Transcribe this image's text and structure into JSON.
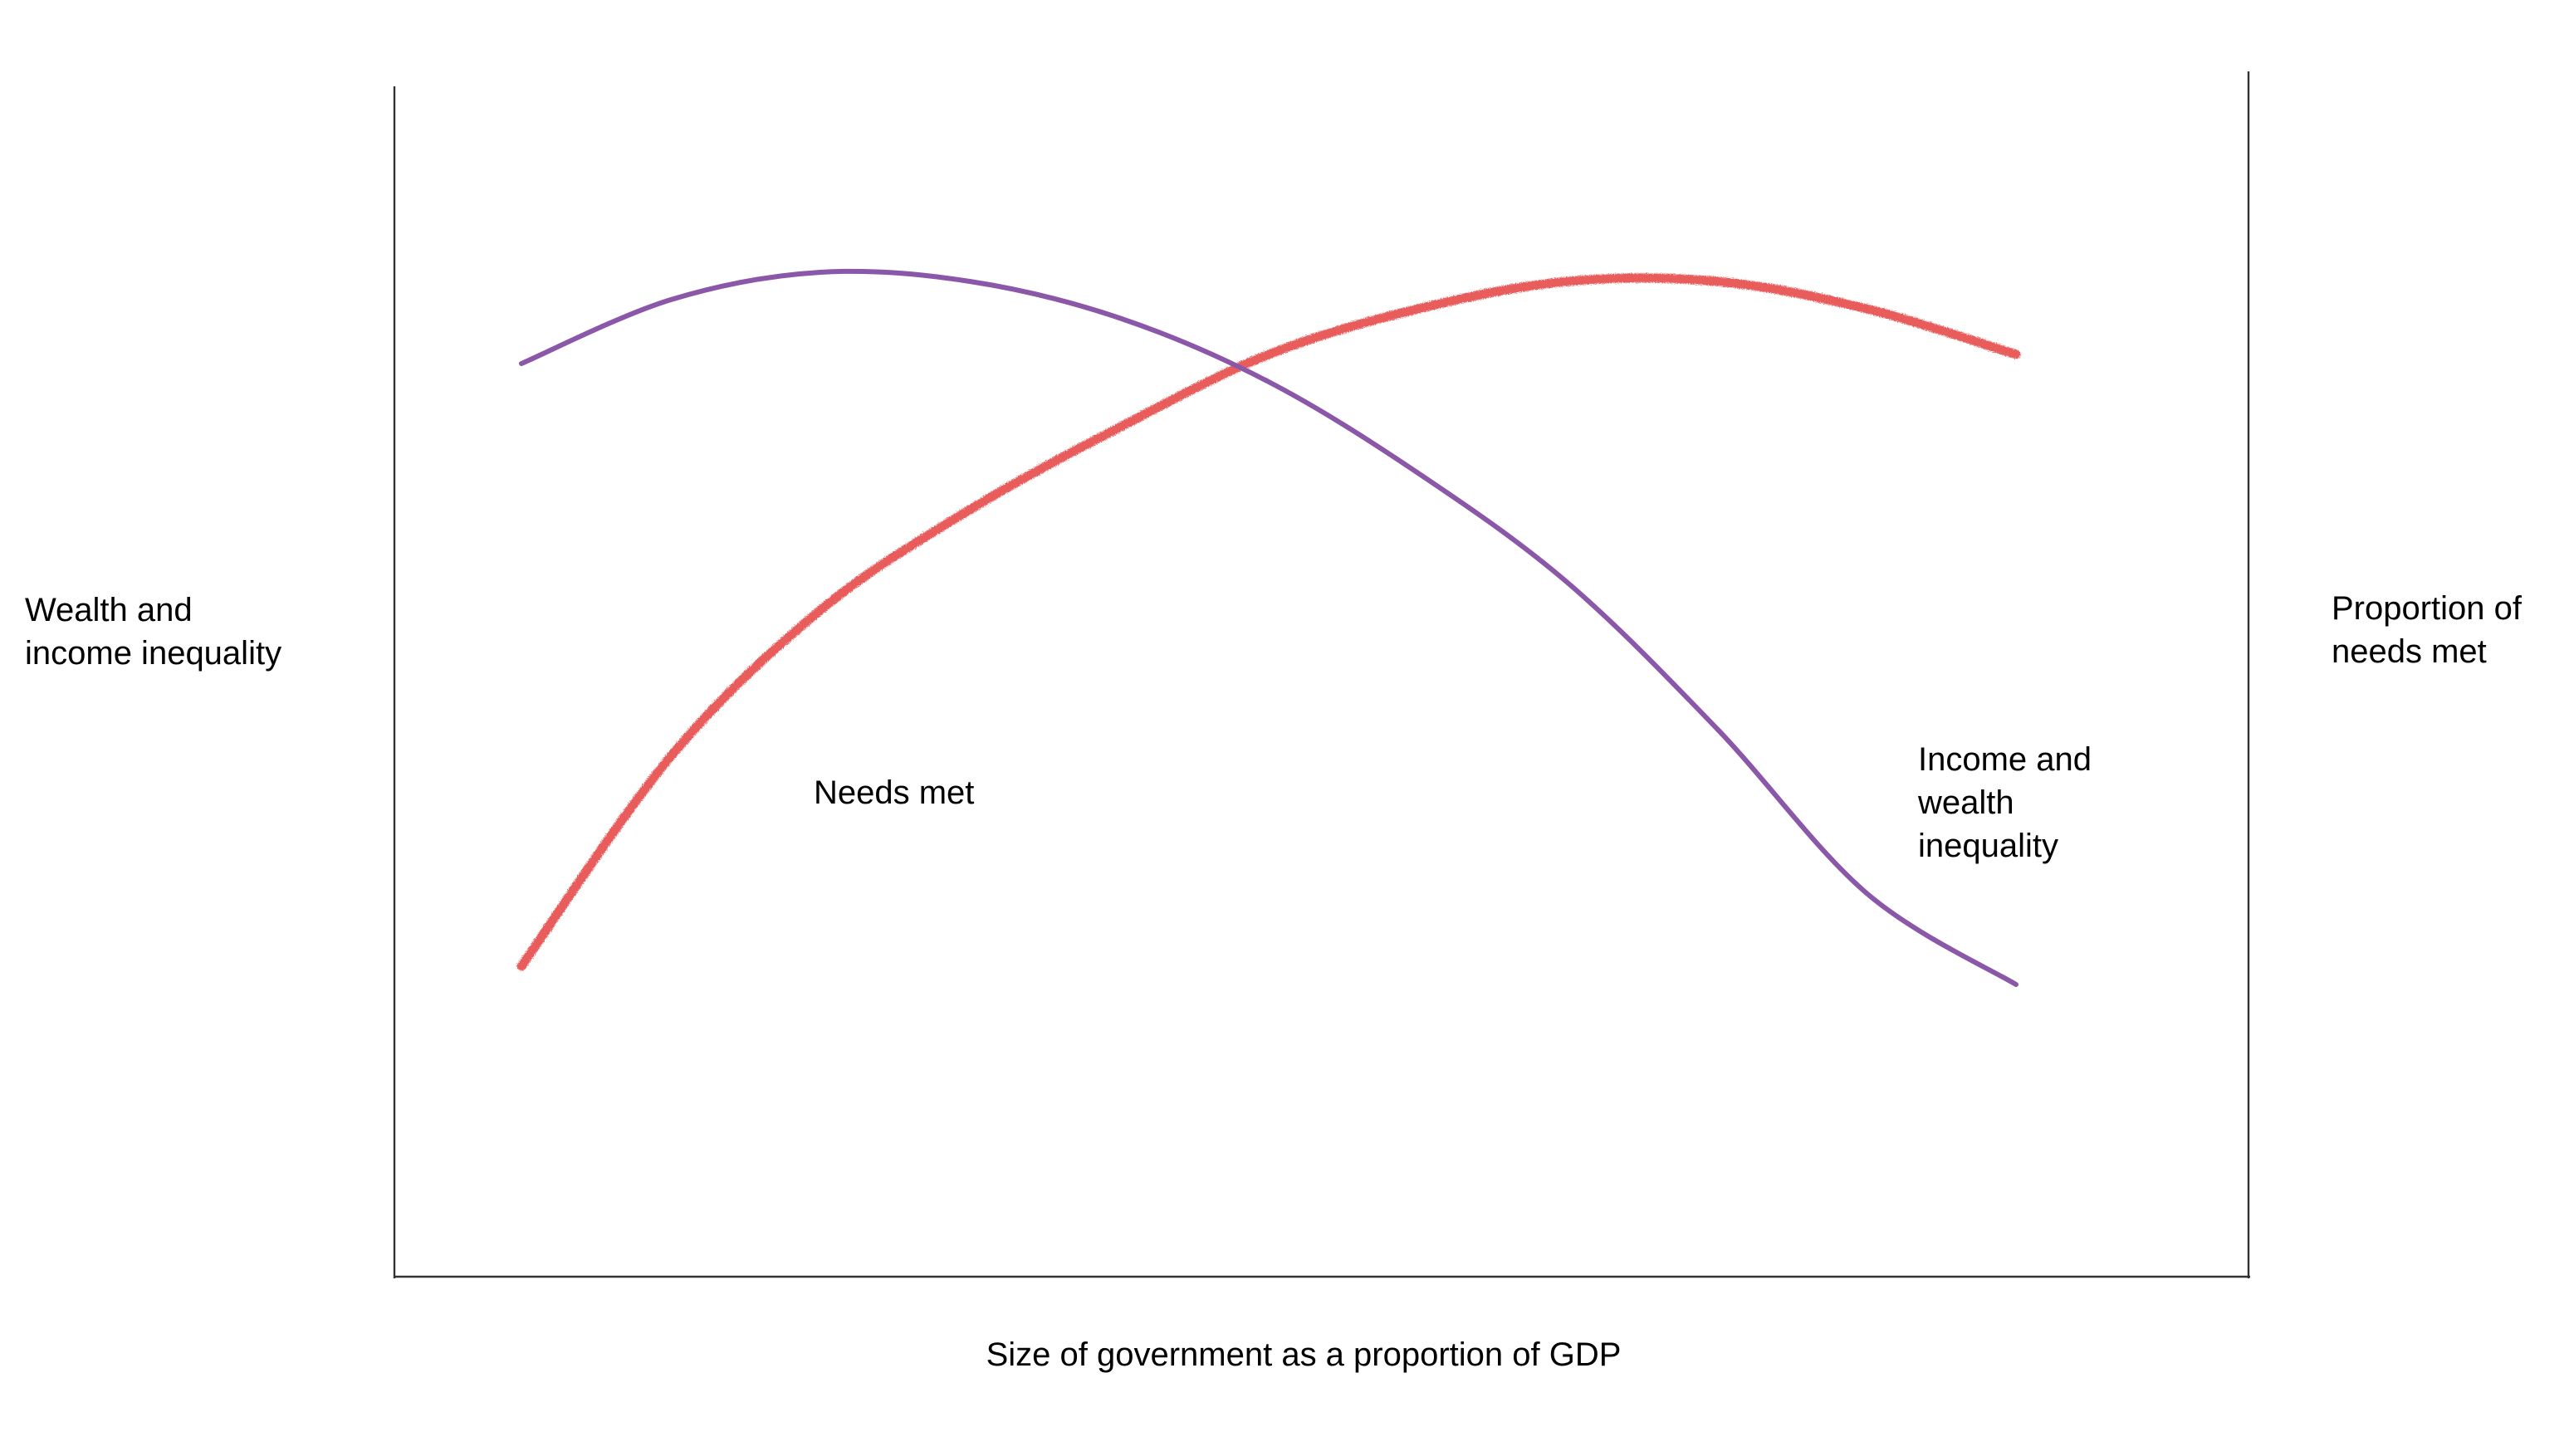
{
  "chart_data": {
    "type": "line",
    "title": "",
    "xlabel": "Size of government as a proportion of GDP",
    "ylabel_left": [
      "Wealth and",
      "income inequality"
    ],
    "ylabel_right": [
      "Proportion of",
      "needs met"
    ],
    "xlim": [
      0,
      100
    ],
    "ylim": [
      0,
      100
    ],
    "grid": false,
    "legend": "none",
    "series": [
      {
        "name": "Needs met",
        "label_lines": [
          "Needs met"
        ],
        "color": "#e8504f",
        "style": "rough",
        "x": [
          0,
          10,
          20,
          30,
          40,
          50,
          60,
          70,
          80,
          90,
          100
        ],
        "y": [
          16,
          39,
          55,
          66,
          75,
          83,
          88,
          91,
          91,
          88,
          83
        ]
      },
      {
        "name": "Income and wealth inequality",
        "label_lines": [
          "Income and",
          "wealth",
          "inequality"
        ],
        "color": "#8b57a8",
        "style": "smooth",
        "x": [
          0,
          10,
          20,
          30,
          40,
          50,
          60,
          70,
          80,
          90,
          100
        ],
        "y": [
          82,
          89,
          92,
          91,
          87,
          80,
          70,
          58,
          42,
          24,
          14
        ]
      }
    ]
  }
}
